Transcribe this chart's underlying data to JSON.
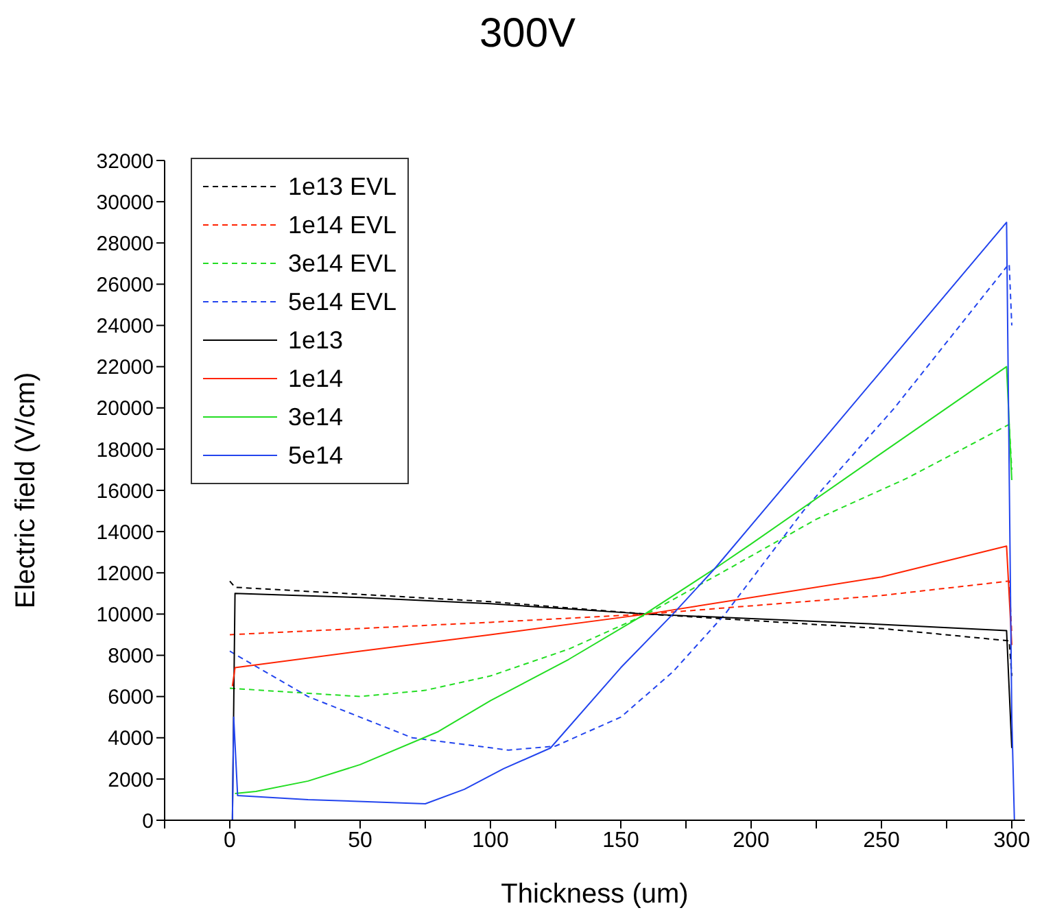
{
  "chart_data": {
    "type": "line",
    "title": "300V",
    "xlabel": "Thickness (um)",
    "ylabel": "Electric field (V/cm)",
    "xlim": [
      -25,
      305
    ],
    "xticks": [
      {
        "value": -25,
        "label": null
      },
      0,
      {
        "value": 25,
        "label": null
      },
      50,
      {
        "value": 75,
        "label": null
      },
      100,
      {
        "value": 125,
        "label": null
      },
      150,
      {
        "value": 175,
        "label": null
      },
      200,
      {
        "value": 225,
        "label": null
      },
      250,
      {
        "value": 275,
        "label": null
      },
      300
    ],
    "ylim": [
      0,
      32000
    ],
    "yticks": [
      0,
      2000,
      4000,
      6000,
      8000,
      10000,
      12000,
      14000,
      16000,
      18000,
      20000,
      22000,
      24000,
      26000,
      28000,
      30000,
      32000
    ],
    "grid": false,
    "legend": "top left",
    "marker": "none",
    "series": [
      {
        "name": "1e13 EVL",
        "color": "#000000",
        "line_style": "dashed",
        "x": [
          0,
          2,
          100,
          160,
          250,
          299,
          300
        ],
        "values": [
          11600,
          11300,
          10600,
          10000,
          9300,
          8700,
          7000
        ]
      },
      {
        "name": "1e14 EVL",
        "color": "#ff2200",
        "line_style": "dashed",
        "x": [
          0,
          100,
          160,
          250,
          299,
          300
        ],
        "values": [
          9000,
          9600,
          10000,
          10900,
          11600,
          9000
        ]
      },
      {
        "name": "3e14 EVL",
        "color": "#22dd22",
        "line_style": "dashed",
        "x": [
          0,
          25,
          50,
          75,
          100,
          130,
          160,
          190,
          225,
          260,
          299,
          300
        ],
        "values": [
          6400,
          6200,
          6000,
          6300,
          7000,
          8300,
          10000,
          12100,
          14600,
          16600,
          19200,
          17000
        ]
      },
      {
        "name": "5e14 EVL",
        "color": "#2244ee",
        "line_style": "dashed",
        "x": [
          0,
          30,
          70,
          107,
          125,
          150,
          170,
          190,
          220,
          255,
          299,
          300
        ],
        "values": [
          8200,
          6000,
          4000,
          3400,
          3600,
          5000,
          7200,
          10000,
          15000,
          20000,
          27000,
          24000
        ]
      },
      {
        "name": "1e13",
        "color": "#000000",
        "line_style": "solid",
        "x": [
          1,
          2,
          50,
          100,
          160,
          250,
          298,
          300
        ],
        "values": [
          0,
          11000,
          10800,
          10500,
          10000,
          9500,
          9200,
          3500
        ]
      },
      {
        "name": "1e14",
        "color": "#ff2200",
        "line_style": "solid",
        "x": [
          1,
          2,
          50,
          100,
          160,
          250,
          298,
          300
        ],
        "values": [
          6500,
          7400,
          8200,
          9000,
          10000,
          11800,
          13300,
          8500
        ]
      },
      {
        "name": "3e14",
        "color": "#22dd22",
        "line_style": "solid",
        "x": [
          2,
          10,
          30,
          50,
          80,
          100,
          130,
          158,
          186,
          200,
          250,
          298,
          300
        ],
        "values": [
          1300,
          1400,
          1900,
          2700,
          4300,
          5800,
          7800,
          9900,
          12200,
          13400,
          17800,
          22000,
          16500
        ]
      },
      {
        "name": "5e14",
        "color": "#2244ee",
        "line_style": "solid",
        "x": [
          1,
          1.5,
          3,
          30,
          75,
          90,
          105,
          123,
          150,
          170,
          186,
          230,
          298,
          300,
          301
        ],
        "values": [
          0,
          5000,
          1200,
          1000,
          800,
          1500,
          2500,
          3500,
          7400,
          10000,
          12200,
          18800,
          29000,
          5000,
          0
        ]
      }
    ]
  }
}
